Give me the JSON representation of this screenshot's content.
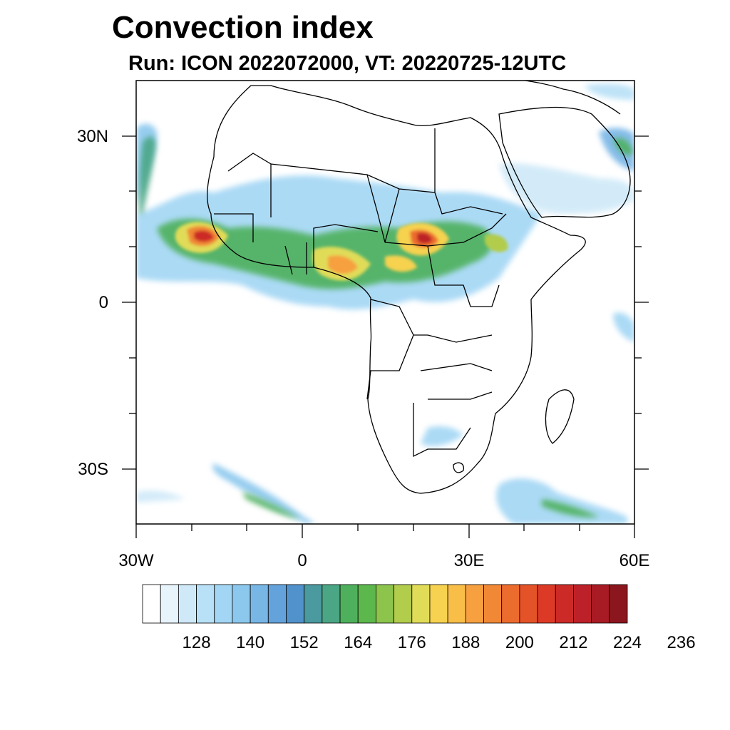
{
  "title": "Convection index",
  "subtitle": "Run: ICON 2022072000,  VT: 20220725-12UTC",
  "map": {
    "region": "Africa",
    "projection": "cylindrical-equidistant",
    "lon_range": [
      -30,
      60
    ],
    "lat_range": [
      -40,
      40
    ],
    "lat_ticks": [
      "30N",
      "0",
      "30S"
    ],
    "lon_ticks": [
      "30W",
      "0",
      "30E",
      "60E"
    ],
    "coastline_color": "#000000",
    "field_name": "Convection index"
  },
  "colorbar": {
    "tick_labels": [
      "128",
      "140",
      "152",
      "164",
      "176",
      "188",
      "200",
      "212",
      "224",
      "236"
    ],
    "colors": [
      "#ffffff",
      "#e8f4fc",
      "#cfe9f8",
      "#b8e0f6",
      "#a2d6f4",
      "#8cc8ee",
      "#78b6e6",
      "#64a2dc",
      "#5292cc",
      "#4a9aa0",
      "#4aa684",
      "#4eb05c",
      "#5cb84c",
      "#8cc44c",
      "#b2cc4c",
      "#e0dc58",
      "#f6d250",
      "#f8be48",
      "#f6a040",
      "#f08836",
      "#ec6c2e",
      "#e45228",
      "#dc3a26",
      "#cc2a26",
      "#bc2028",
      "#a81a24",
      "#8c161e"
    ]
  }
}
